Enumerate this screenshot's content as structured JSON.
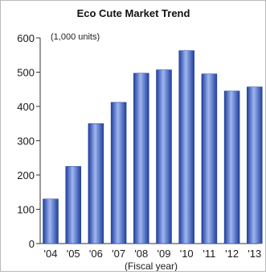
{
  "chart_data": {
    "type": "bar",
    "title": "Eco Cute Market Trend",
    "unit_label": "(1,000 units)",
    "xlabel": "(Fiscal year)",
    "ylabel": "",
    "categories": [
      "'04",
      "'05",
      "'06",
      "'07",
      "'08",
      "'09",
      "'10",
      "'11",
      "'12",
      "'13"
    ],
    "values": [
      130,
      225,
      350,
      412,
      497,
      507,
      563,
      495,
      445,
      457
    ],
    "ylim": [
      0,
      600
    ],
    "yticks": [
      0,
      100,
      200,
      300,
      400,
      500,
      600
    ],
    "grid": false,
    "legend": "none",
    "colors": {
      "bar_dark": "#1f3f9e",
      "bar_mid": "#4a6fd4",
      "bar_light": "#9fb6f0",
      "axis": "#333333"
    }
  }
}
